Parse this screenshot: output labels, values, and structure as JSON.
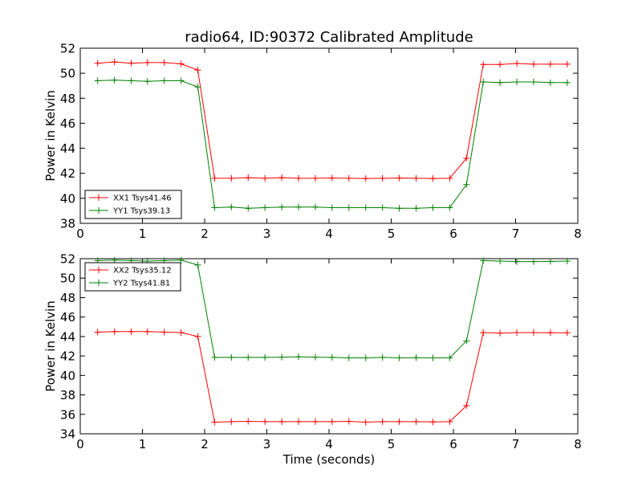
{
  "chart_data": [
    {
      "type": "line",
      "title": "radio64, ID:90372 Calibrated Amplitude",
      "xlabel": "",
      "ylabel": "Power in Kelvin",
      "xlim": [
        0,
        8
      ],
      "ylim": [
        38,
        52
      ],
      "xticks": [
        "0",
        "1",
        "2",
        "3",
        "4",
        "5",
        "6",
        "7",
        "8"
      ],
      "yticks": [
        "38",
        "40",
        "42",
        "44",
        "46",
        "48",
        "50",
        "52"
      ],
      "legend_position": "lower-left",
      "x": [
        0.28,
        0.55,
        0.82,
        1.08,
        1.35,
        1.62,
        1.89,
        2.16,
        2.43,
        2.7,
        2.97,
        3.24,
        3.51,
        3.78,
        4.05,
        4.32,
        4.59,
        4.86,
        5.13,
        5.4,
        5.67,
        5.94,
        6.21,
        6.48,
        6.75,
        7.02,
        7.29,
        7.56,
        7.83
      ],
      "series": [
        {
          "name": "XX1 Tsys41.46",
          "color": "#ff0000",
          "values": [
            50.8,
            50.9,
            50.8,
            50.85,
            50.85,
            50.75,
            50.25,
            41.6,
            41.6,
            41.65,
            41.6,
            41.65,
            41.6,
            41.6,
            41.62,
            41.6,
            41.58,
            41.6,
            41.62,
            41.6,
            41.58,
            41.6,
            43.2,
            50.7,
            50.7,
            50.78,
            50.72,
            50.72,
            50.72
          ]
        },
        {
          "name": "YY1 Tsys39.13",
          "color": "#008000",
          "values": [
            49.4,
            49.45,
            49.4,
            49.35,
            49.4,
            49.4,
            48.9,
            39.25,
            39.3,
            39.2,
            39.25,
            39.3,
            39.3,
            39.3,
            39.25,
            39.25,
            39.25,
            39.25,
            39.2,
            39.2,
            39.25,
            39.25,
            41.1,
            49.3,
            49.25,
            49.3,
            49.3,
            49.25,
            49.25
          ]
        }
      ]
    },
    {
      "type": "line",
      "title": "",
      "xlabel": "Time (seconds)",
      "ylabel": "Power in Kelvin",
      "xlim": [
        0,
        8
      ],
      "ylim": [
        34,
        52
      ],
      "xticks": [
        "0",
        "1",
        "2",
        "3",
        "4",
        "5",
        "6",
        "7",
        "8"
      ],
      "yticks": [
        "34",
        "36",
        "38",
        "40",
        "42",
        "44",
        "46",
        "48",
        "50",
        "52"
      ],
      "legend_position": "upper-left",
      "x": [
        0.28,
        0.55,
        0.82,
        1.08,
        1.35,
        1.62,
        1.89,
        2.16,
        2.43,
        2.7,
        2.97,
        3.24,
        3.51,
        3.78,
        4.05,
        4.32,
        4.59,
        4.86,
        5.13,
        5.4,
        5.67,
        5.94,
        6.21,
        6.48,
        6.75,
        7.02,
        7.29,
        7.56,
        7.83
      ],
      "series": [
        {
          "name": "XX2 Tsys35.12",
          "color": "#ff0000",
          "values": [
            44.45,
            44.5,
            44.5,
            44.5,
            44.45,
            44.4,
            44.0,
            35.2,
            35.25,
            35.28,
            35.25,
            35.25,
            35.25,
            35.25,
            35.25,
            35.28,
            35.2,
            35.25,
            35.25,
            35.25,
            35.22,
            35.25,
            36.9,
            44.4,
            44.35,
            44.4,
            44.4,
            44.38,
            44.38
          ]
        },
        {
          "name": "YY2 Tsys41.81",
          "color": "#008000",
          "values": [
            51.8,
            51.85,
            51.8,
            51.75,
            51.8,
            51.85,
            51.35,
            41.85,
            41.85,
            41.85,
            41.85,
            41.88,
            41.92,
            41.88,
            41.85,
            41.8,
            41.8,
            41.85,
            41.8,
            41.82,
            41.8,
            41.8,
            43.55,
            51.8,
            51.75,
            51.7,
            51.7,
            51.72,
            51.75
          ]
        }
      ]
    }
  ]
}
